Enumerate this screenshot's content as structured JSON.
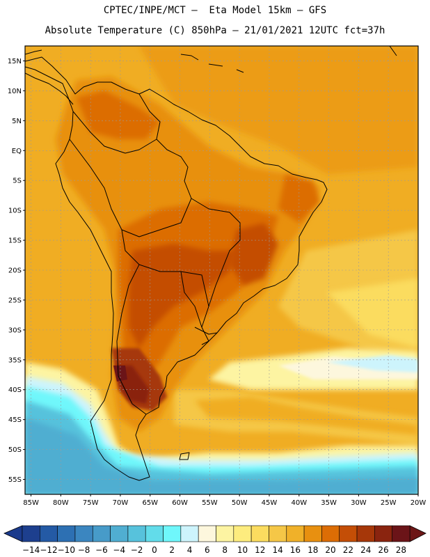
{
  "title": {
    "line1": "CPTEC/INPE/MCT –  Eta Model 15km – GFS",
    "line2": "Absolute Temperature (C) 850hPa – 21/01/2021 12UTC fct=37h"
  },
  "axes": {
    "lat_labels": [
      "15N",
      "10N",
      "5N",
      "EQ",
      "5S",
      "10S",
      "15S",
      "20S",
      "25S",
      "30S",
      "35S",
      "40S",
      "45S",
      "50S",
      "55S"
    ],
    "lon_labels": [
      "85W",
      "80W",
      "75W",
      "70W",
      "65W",
      "60W",
      "55W",
      "50W",
      "45W",
      "40W",
      "35W",
      "30W",
      "25W",
      "20W"
    ],
    "lat_range": [
      17.5,
      -57.5
    ],
    "lon_range": [
      -86.0,
      -20.0
    ]
  },
  "colorbar": {
    "labels": [
      "-14",
      "-12",
      "-10",
      "-8",
      "-6",
      "-4",
      "-2",
      "0",
      "2",
      "4",
      "6",
      "8",
      "10",
      "12",
      "14",
      "16",
      "18",
      "20",
      "22",
      "24",
      "26",
      "28"
    ],
    "colors": [
      "#1d3f8e",
      "#245aa5",
      "#2d70b3",
      "#3b86c0",
      "#479bc9",
      "#50aed1",
      "#57c2dc",
      "#62dcea",
      "#6ff7fb",
      "#cdf4fc",
      "#fdf7dd",
      "#fdf4a2",
      "#fdec7e",
      "#fbdc5f",
      "#f5c747",
      "#f0b129",
      "#e89010",
      "#dc6d05",
      "#c44e06",
      "#a63709",
      "#8a240f",
      "#6b1418"
    ],
    "min_color": "#1a3a8c",
    "max_color": "#6d1616"
  },
  "colors": {
    "background_field": "#f0ad23",
    "coast": "#000000",
    "grid": "#9a9a9a"
  }
}
